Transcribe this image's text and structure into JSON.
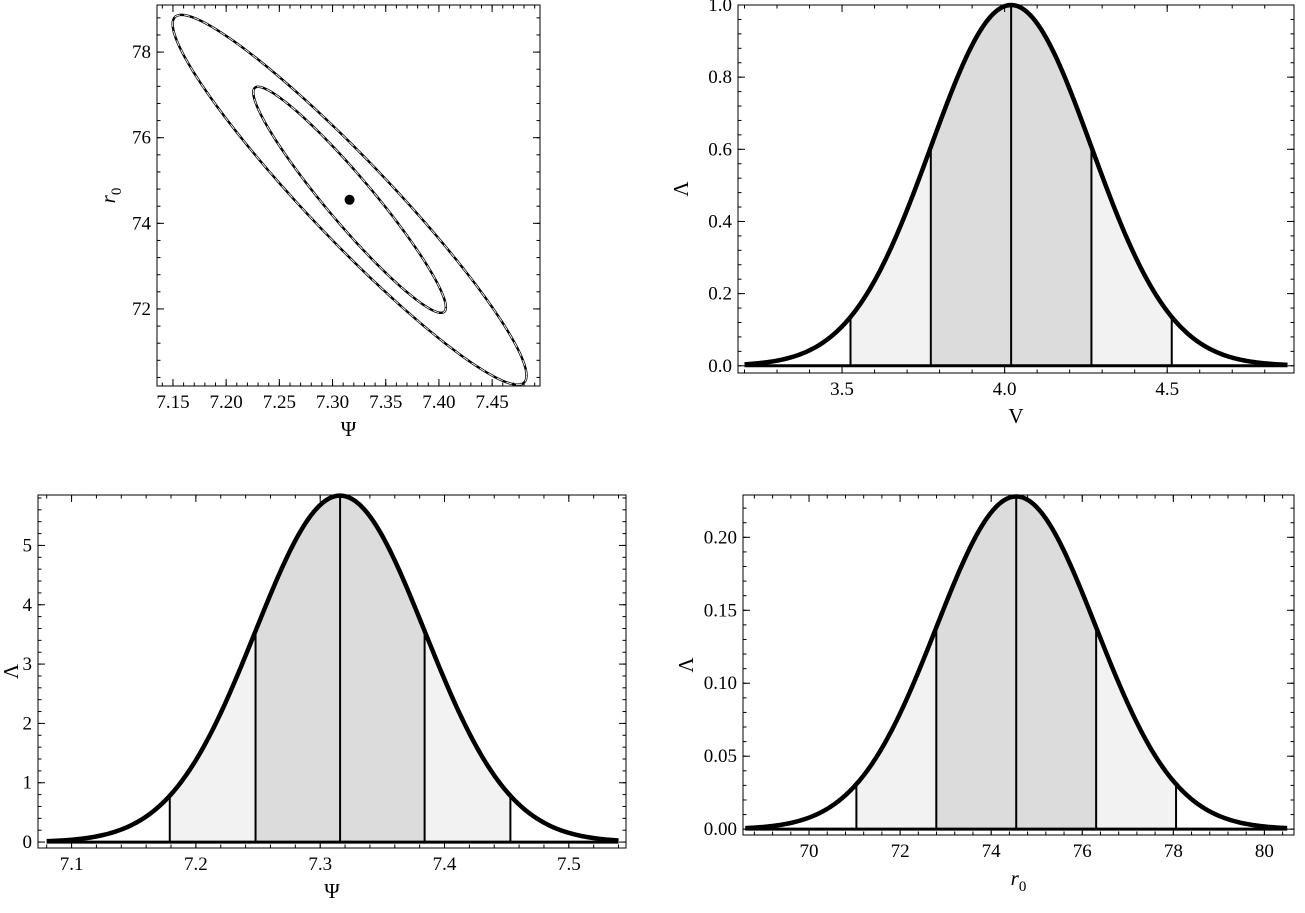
{
  "colors": {
    "curve": "#000000",
    "inner_band": "#dcdcdc",
    "outer_band": "#f2f2f2",
    "baseline": "#000000"
  },
  "chart_data": [
    {
      "id": "contour",
      "type": "contour",
      "xlabel": "Ψ",
      "ylabel_main": "r",
      "ylabel_sub": "0",
      "xlim": [
        7.135,
        7.495
      ],
      "ylim": [
        70.2,
        79.1
      ],
      "xticks": [
        7.15,
        7.2,
        7.25,
        7.3,
        7.35,
        7.4,
        7.45
      ],
      "xtick_labels": [
        "7.15",
        "7.20",
        "7.25",
        "7.30",
        "7.35",
        "7.40",
        "7.45"
      ],
      "yticks": [
        72,
        74,
        76,
        78
      ],
      "ytick_labels": [
        "72",
        "74",
        "76",
        "78"
      ],
      "center": [
        7.316,
        74.55
      ],
      "ellipses": [
        {
          "level": "inner",
          "half_width_x": 0.0905,
          "half_height_y": 2.64
        },
        {
          "level": "outer",
          "half_width_x": 0.1663,
          "half_height_y": 4.32
        }
      ]
    },
    {
      "id": "v-likelihood",
      "type": "area",
      "xlabel": "V",
      "ylabel": "Λ",
      "xlim": [
        3.18,
        4.89
      ],
      "ylim": [
        -0.02,
        1.0
      ],
      "xticks": [
        3.5,
        4.0,
        4.5
      ],
      "xtick_labels": [
        "3.5",
        "4.0",
        "4.5"
      ],
      "yticks": [
        0.0,
        0.2,
        0.4,
        0.6,
        0.8,
        1.0
      ],
      "ytick_labels": [
        "0.0",
        "0.2",
        "0.4",
        "0.6",
        "0.8",
        "1.0"
      ],
      "mean": 4.02,
      "sigma": 0.247,
      "peak": 1.0,
      "x_range": [
        3.2,
        4.87
      ],
      "inner_bounds": [
        3.773,
        4.267
      ],
      "outer_bounds": [
        3.526,
        4.514
      ]
    },
    {
      "id": "psi-likelihood",
      "type": "area",
      "xlabel": "Ψ",
      "ylabel": "Λ",
      "xlim": [
        7.073,
        7.546
      ],
      "ylim": [
        -0.1,
        5.85
      ],
      "xticks": [
        7.1,
        7.2,
        7.3,
        7.4,
        7.5
      ],
      "xtick_labels": [
        "7.1",
        "7.2",
        "7.3",
        "7.4",
        "7.5"
      ],
      "yticks": [
        0,
        1,
        2,
        3,
        4,
        5
      ],
      "ytick_labels": [
        "0",
        "1",
        "2",
        "3",
        "4",
        "5"
      ],
      "mean": 7.316,
      "sigma": 0.0683,
      "peak": 5.84,
      "x_range": [
        7.08,
        7.54
      ],
      "inner_bounds": [
        7.248,
        7.384
      ],
      "outer_bounds": [
        7.179,
        7.453
      ]
    },
    {
      "id": "r0-likelihood",
      "type": "area",
      "xlabel_main": "r",
      "xlabel_sub": "0",
      "ylabel": "Λ",
      "xlim": [
        68.55,
        80.65
      ],
      "ylim": [
        -0.004,
        0.229
      ],
      "xticks": [
        70,
        72,
        74,
        76,
        78,
        80
      ],
      "xtick_labels": [
        "70",
        "72",
        "74",
        "76",
        "78",
        "80"
      ],
      "yticks": [
        0.0,
        0.05,
        0.1,
        0.15,
        0.2
      ],
      "ytick_labels": [
        "0.00",
        "0.05",
        "0.10",
        "0.15",
        "0.20"
      ],
      "mean": 74.55,
      "sigma": 1.755,
      "peak": 0.228,
      "x_range": [
        68.6,
        80.5
      ],
      "inner_bounds": [
        72.795,
        76.305
      ],
      "outer_bounds": [
        71.04,
        78.06
      ]
    }
  ]
}
